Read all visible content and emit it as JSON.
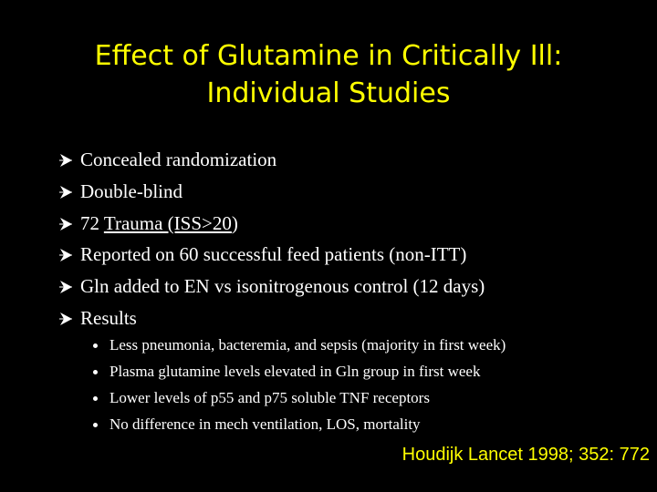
{
  "slide": {
    "title": [
      "Effect of Glutamine in Critically Ill:",
      "Individual Studies"
    ],
    "bullets": [
      [
        "Concealed randomization"
      ],
      [
        "Double-blind"
      ],
      [
        "72 ",
        "Trauma (ISS>20",
        ")"
      ],
      [
        "Reported on 60 successful feed patients (non-ITT)"
      ],
      [
        "Gln added to EN vs isonitrogenous control (12 days)"
      ],
      [
        "Results"
      ]
    ],
    "sub_bullets": [
      "Less pneumonia, bacteremia, and sepsis (majority in first week)",
      "Plasma glutamine levels elevated in Gln group in first week",
      "Lower levels of p55 and p75 soluble TNF receptors",
      "No difference in mech ventilation, LOS, mortality"
    ],
    "citation": "Houdijk Lancet 1998; 352: 772"
  }
}
